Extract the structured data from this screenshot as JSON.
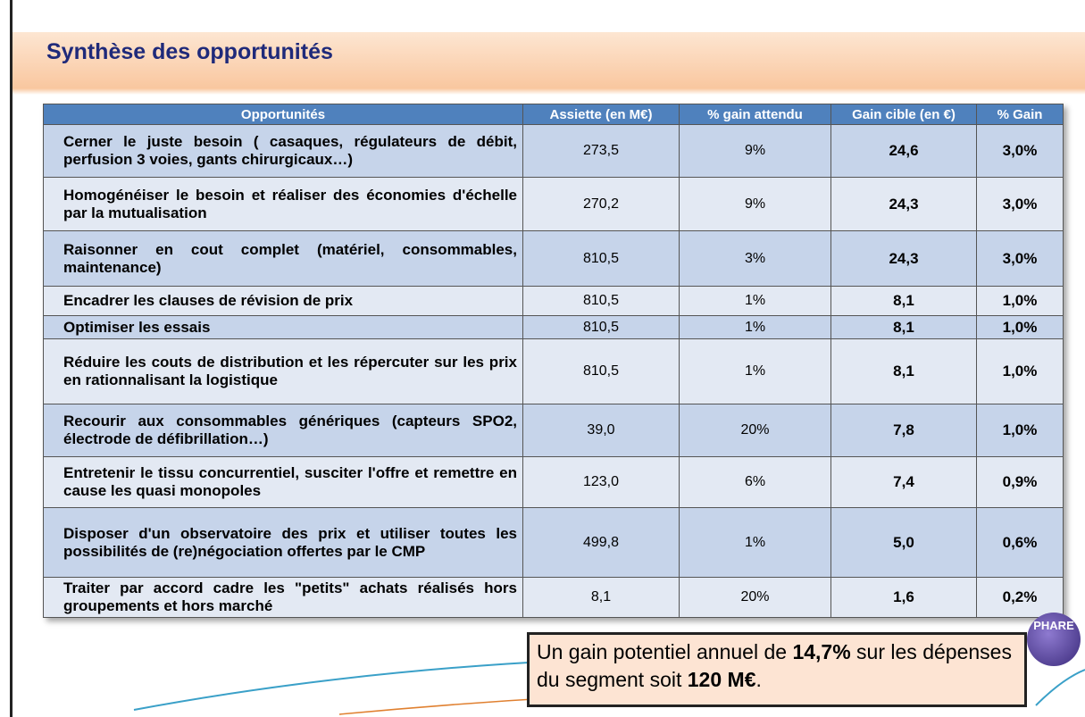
{
  "header": {
    "title": "Synthèse des opportunités"
  },
  "table": {
    "columns": [
      "Opportunités",
      "Assiette (en M€)",
      "% gain attendu",
      "Gain cible (en €)",
      "% Gain"
    ],
    "rows": [
      [
        "Cerner le juste besoin ( casaques, régulateurs de débit, perfusion 3 voies, gants chirurgicaux…)",
        "273,5",
        "9%",
        "24,6",
        "3,0%"
      ],
      [
        "Homogénéiser le besoin et réaliser des économies d'échelle par la mutualisation",
        "270,2",
        "9%",
        "24,3",
        "3,0%"
      ],
      [
        "Raisonner en cout complet (matériel, consommables, maintenance)",
        "810,5",
        "3%",
        "24,3",
        "3,0%"
      ],
      [
        "Encadrer les clauses de révision de prix",
        "810,5",
        "1%",
        "8,1",
        "1,0%"
      ],
      [
        "Optimiser les essais",
        "810,5",
        "1%",
        "8,1",
        "1,0%"
      ],
      [
        "Réduire les couts de distribution et les répercuter sur les prix en rationnalisant la logistique",
        "810,5",
        "1%",
        "8,1",
        "1,0%"
      ],
      [
        "Recourir aux consommables génériques (capteurs SPO2, électrode de défibrillation…)",
        "39,0",
        "20%",
        "7,8",
        "1,0%"
      ],
      [
        "Entretenir le tissu concurrentiel, susciter l'offre et remettre en cause les quasi monopoles",
        "123,0",
        "6%",
        "7,4",
        "0,9%"
      ],
      [
        "Disposer d'un observatoire des prix et utiliser toutes les possibilités de (re)négociation offertes par le CMP",
        "499,8",
        "1%",
        "5,0",
        "0,6%"
      ],
      [
        "Traiter par accord cadre les \"petits\" achats réalisés hors groupements et hors marché",
        "8,1",
        "20%",
        "1,6",
        "0,2%"
      ]
    ]
  },
  "callout": {
    "parts": [
      "Un gain potentiel annuel de ",
      "14,7%",
      " sur les dépenses du segment soit ",
      "120 M€",
      "."
    ]
  },
  "logo": {
    "text": "PHARE"
  }
}
